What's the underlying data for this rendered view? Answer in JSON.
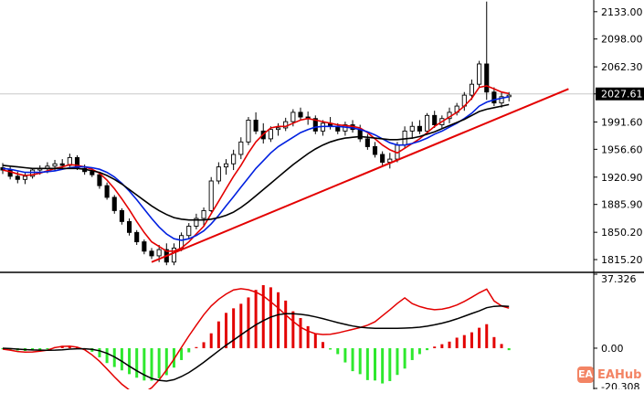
{
  "chart_data": [
    {
      "type": "candlestick",
      "price_axis_ticks": [
        "2133.00",
        "2098.00",
        "2062.30",
        "2027.61",
        "1991.60",
        "1956.60",
        "1920.90",
        "1885.90",
        "1850.20",
        "1815.20"
      ],
      "current_price": "2027.61",
      "ylim": [
        1800,
        2148
      ],
      "candles": [
        [
          1933,
          1939,
          1925,
          1930
        ],
        [
          1930,
          1934,
          1918,
          1922
        ],
        [
          1922,
          1928,
          1913,
          1918
        ],
        [
          1918,
          1926,
          1912,
          1922
        ],
        [
          1922,
          1933,
          1919,
          1930
        ],
        [
          1930,
          1936,
          1924,
          1932
        ],
        [
          1932,
          1940,
          1926,
          1935
        ],
        [
          1935,
          1943,
          1929,
          1938
        ],
        [
          1938,
          1944,
          1932,
          1936
        ],
        [
          1936,
          1951,
          1934,
          1946
        ],
        [
          1946,
          1949,
          1930,
          1932
        ],
        [
          1932,
          1937,
          1924,
          1928
        ],
        [
          1928,
          1933,
          1921,
          1924
        ],
        [
          1924,
          1926,
          1906,
          1910
        ],
        [
          1910,
          1914,
          1892,
          1895
        ],
        [
          1895,
          1898,
          1874,
          1878
        ],
        [
          1878,
          1881,
          1860,
          1864
        ],
        [
          1864,
          1868,
          1846,
          1850
        ],
        [
          1850,
          1853,
          1834,
          1838
        ],
        [
          1838,
          1841,
          1822,
          1826
        ],
        [
          1826,
          1830,
          1816,
          1820
        ],
        [
          1820,
          1834,
          1812,
          1828
        ],
        [
          1828,
          1836,
          1808,
          1812
        ],
        [
          1812,
          1836,
          1808,
          1830
        ],
        [
          1830,
          1850,
          1826,
          1846
        ],
        [
          1846,
          1862,
          1842,
          1858
        ],
        [
          1858,
          1874,
          1854,
          1868
        ],
        [
          1868,
          1882,
          1858,
          1878
        ],
        [
          1878,
          1921,
          1876,
          1916
        ],
        [
          1916,
          1940,
          1912,
          1934
        ],
        [
          1934,
          1944,
          1924,
          1938
        ],
        [
          1938,
          1956,
          1930,
          1950
        ],
        [
          1950,
          1972,
          1944,
          1966
        ],
        [
          1966,
          1998,
          1962,
          1994
        ],
        [
          1994,
          2004,
          1976,
          1980
        ],
        [
          1980,
          1990,
          1964,
          1970
        ],
        [
          1970,
          1986,
          1966,
          1982
        ],
        [
          1982,
          1990,
          1974,
          1984
        ],
        [
          1984,
          1997,
          1980,
          1992
        ],
        [
          1992,
          2008,
          1986,
          2004
        ],
        [
          2004,
          2010,
          1994,
          1998
        ],
        [
          1998,
          2005,
          1988,
          1996
        ],
        [
          1996,
          2000,
          1976,
          1980
        ],
        [
          1980,
          1994,
          1974,
          1990
        ],
        [
          1990,
          1998,
          1982,
          1986
        ],
        [
          1986,
          1990,
          1976,
          1980
        ],
        [
          1980,
          1992,
          1974,
          1988
        ],
        [
          1988,
          1994,
          1978,
          1982
        ],
        [
          1982,
          1988,
          1966,
          1970
        ],
        [
          1970,
          1976,
          1956,
          1960
        ],
        [
          1960,
          1966,
          1946,
          1950
        ],
        [
          1950,
          1954,
          1936,
          1940
        ],
        [
          1940,
          1952,
          1932,
          1944
        ],
        [
          1944,
          1966,
          1940,
          1962
        ],
        [
          1962,
          1986,
          1958,
          1980
        ],
        [
          1980,
          1992,
          1970,
          1986
        ],
        [
          1986,
          1994,
          1976,
          1980
        ],
        [
          1980,
          2003,
          1976,
          2000
        ],
        [
          2000,
          2006,
          1984,
          1988
        ],
        [
          1988,
          2000,
          1984,
          1996
        ],
        [
          1996,
          2010,
          1990,
          2004
        ],
        [
          2004,
          2016,
          2000,
          2012
        ],
        [
          2012,
          2030,
          2006,
          2026
        ],
        [
          2026,
          2046,
          2020,
          2040
        ],
        [
          2040,
          2070,
          2036,
          2066
        ],
        [
          2066,
          2146,
          2020,
          2030
        ],
        [
          2030,
          2036,
          2012,
          2016
        ],
        [
          2016,
          2030,
          2010,
          2024
        ],
        [
          2024,
          2030,
          2018,
          2026
        ]
      ],
      "moving_averages": [
        {
          "color": "#e30000",
          "values": [
            1930,
            1928,
            1925,
            1923,
            1924,
            1926,
            1929,
            1932,
            1934,
            1937,
            1936,
            1934,
            1931,
            1926,
            1917,
            1906,
            1893,
            1879,
            1864,
            1850,
            1838,
            1832,
            1826,
            1826,
            1830,
            1838,
            1848,
            1858,
            1874,
            1890,
            1906,
            1922,
            1936,
            1952,
            1966,
            1976,
            1984,
            1986,
            1986,
            1990,
            1994,
            1996,
            1994,
            1992,
            1990,
            1988,
            1987,
            1986,
            1984,
            1978,
            1970,
            1962,
            1956,
            1952,
            1958,
            1964,
            1970,
            1978,
            1986,
            1992,
            1998,
            2004,
            2012,
            2022,
            2036,
            2038,
            2034,
            2030,
            2028
          ]
        },
        {
          "color": "#0020e0",
          "values": [
            1932,
            1931,
            1929,
            1927,
            1927,
            1927,
            1928,
            1929,
            1931,
            1933,
            1934,
            1934,
            1933,
            1931,
            1927,
            1921,
            1913,
            1903,
            1892,
            1880,
            1868,
            1857,
            1848,
            1842,
            1840,
            1842,
            1846,
            1852,
            1861,
            1872,
            1884,
            1896,
            1908,
            1920,
            1932,
            1942,
            1952,
            1960,
            1966,
            1972,
            1978,
            1982,
            1985,
            1986,
            1986,
            1986,
            1985,
            1984,
            1982,
            1979,
            1975,
            1970,
            1965,
            1962,
            1962,
            1964,
            1967,
            1971,
            1976,
            1980,
            1985,
            1990,
            1996,
            2003,
            2012,
            2017,
            2020,
            2022,
            2024
          ]
        },
        {
          "color": "#000000",
          "values": [
            1936,
            1935,
            1934,
            1933,
            1932,
            1932,
            1932,
            1932,
            1932,
            1932,
            1932,
            1931,
            1929,
            1927,
            1923,
            1918,
            1912,
            1905,
            1898,
            1891,
            1884,
            1878,
            1873,
            1869,
            1867,
            1866,
            1866,
            1866,
            1867,
            1869,
            1872,
            1876,
            1882,
            1889,
            1897,
            1905,
            1913,
            1921,
            1929,
            1937,
            1944,
            1951,
            1957,
            1962,
            1966,
            1969,
            1971,
            1972,
            1973,
            1972,
            1971,
            1970,
            1969,
            1969,
            1970,
            1971,
            1973,
            1976,
            1979,
            1983,
            1987,
            1991,
            1995,
            2000,
            2005,
            2008,
            2010,
            2012,
            2014
          ]
        }
      ],
      "trendline": {
        "color": "#e30000",
        "from": [
          20,
          1812
        ],
        "to": [
          76,
          2034
        ]
      }
    },
    {
      "type": "bar",
      "indicator": "MACD",
      "axis_ticks": [
        "37.326",
        "0.00",
        "-20.308"
      ],
      "ylim": [
        -20.308,
        37.326
      ],
      "histogram": [
        -0.5,
        -0.8,
        -1.2,
        -1.4,
        -1.2,
        -0.8,
        -0.4,
        0.3,
        1.2,
        0.9,
        0.4,
        -0.6,
        -1.8,
        -4.6,
        -7.5,
        -9.5,
        -11.2,
        -13.1,
        -14.9,
        -16.3,
        -16.4,
        -15.2,
        -13.6,
        -9.8,
        -6.0,
        -2.1,
        0,
        3.0,
        7.5,
        13.5,
        17.8,
        20.1,
        22.4,
        25.6,
        29.4,
        31.8,
        30.7,
        28.2,
        24.0,
        18.6,
        15.2,
        11.1,
        7.2,
        3.1,
        -0.7,
        -3.0,
        -7.2,
        -11.6,
        -13.1,
        -16.1,
        -16.3,
        -17.8,
        -16.6,
        -13.5,
        -10.3,
        -6.0,
        -3.0,
        -1.0,
        0.8,
        2.0,
        3.3,
        5.3,
        6.6,
        8.0,
        10.3,
        12.1,
        5.6,
        2.1,
        -1.0
      ],
      "series": [
        {
          "color": "#e30000",
          "values": [
            -0.5,
            -1.0,
            -1.7,
            -2.0,
            -1.9,
            -1.5,
            -1.0,
            0.3,
            0.9,
            1.0,
            0.5,
            -0.8,
            -3.4,
            -6.6,
            -10.5,
            -14.5,
            -18.2,
            -21.1,
            -22.6,
            -22.4,
            -20.0,
            -16.0,
            -11.0,
            -5.5,
            0.4,
            6.2,
            11.6,
            16.9,
            21.3,
            24.7,
            27.3,
            29.4,
            30.0,
            29.5,
            28.3,
            26.3,
            23.4,
            20.2,
            16.8,
            13.5,
            10.6,
            8.6,
            7.3,
            6.9,
            7.0,
            7.7,
            8.6,
            9.5,
            10.4,
            11.6,
            13.3,
            16.4,
            19.4,
            22.6,
            25.4,
            22.5,
            21.0,
            20.0,
            19.4,
            19.7,
            20.5,
            21.8,
            23.6,
            25.7,
            27.9,
            29.8,
            23.8,
            21.3,
            20.2
          ]
        },
        {
          "color": "#000000",
          "values": [
            0,
            -0.2,
            -0.5,
            -0.7,
            -0.9,
            -1.0,
            -1.1,
            -1.0,
            -0.8,
            -0.5,
            -0.3,
            -0.3,
            -0.6,
            -1.3,
            -2.6,
            -4.4,
            -6.6,
            -9.1,
            -11.4,
            -13.5,
            -15.3,
            -16.2,
            -16.6,
            -15.9,
            -14.3,
            -12.3,
            -9.8,
            -7.1,
            -4.2,
            -1.3,
            1.5,
            4.1,
            6.7,
            9.3,
            11.8,
            13.9,
            15.7,
            16.9,
            17.4,
            17.4,
            17.1,
            16.6,
            15.8,
            14.9,
            13.9,
            12.9,
            12.0,
            11.2,
            10.6,
            10.2,
            10.0,
            10.0,
            10.0,
            10.0,
            10.1,
            10.3,
            10.6,
            11.1,
            11.8,
            12.6,
            13.6,
            14.8,
            16.1,
            17.5,
            18.8,
            20.4,
            21.1,
            21.3,
            21.1
          ]
        }
      ]
    }
  ],
  "watermark": {
    "logo_glyph": "EA",
    "text": "EAHub"
  },
  "colors": {
    "bull": "#ffffff",
    "bear": "#000000",
    "hist_pos": "#e30000",
    "hist_neg": "#2ee82e"
  }
}
